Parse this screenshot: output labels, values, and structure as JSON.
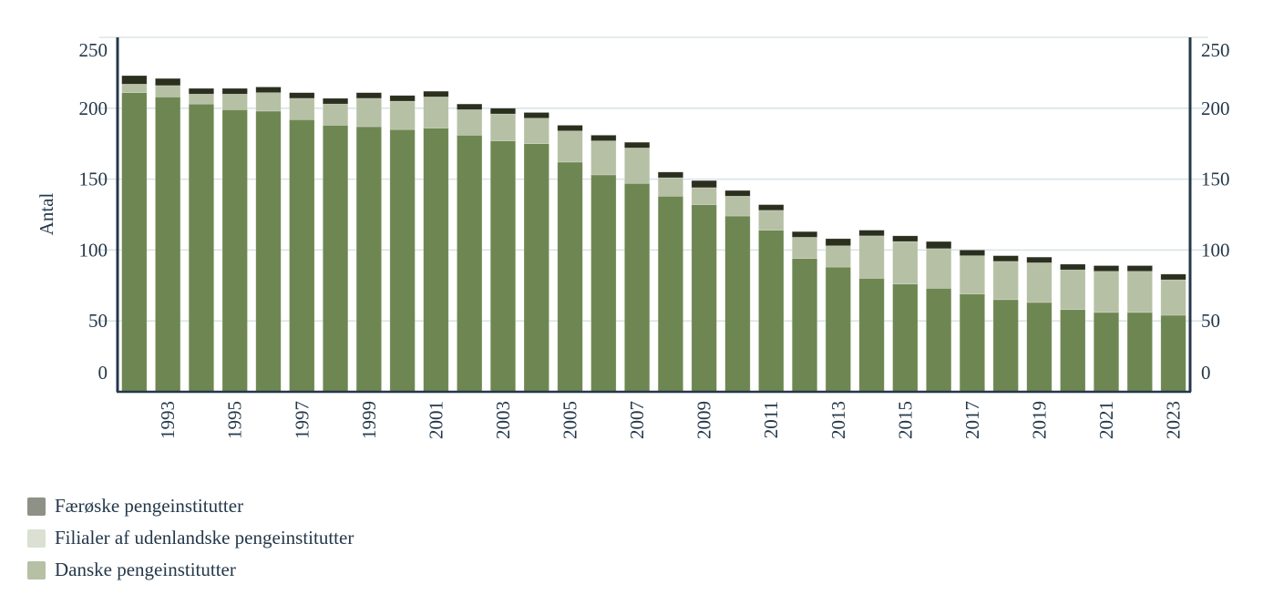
{
  "chart_data": {
    "type": "bar",
    "stacked": true,
    "title": "",
    "xlabel": "",
    "ylabel": "Antal",
    "ylim": [
      0,
      250
    ],
    "yticks": [
      0,
      50,
      100,
      150,
      200,
      250
    ],
    "grid": true,
    "legend_position": "bottom-left",
    "categories": [
      1992,
      1993,
      1994,
      1995,
      1996,
      1997,
      1998,
      1999,
      2000,
      2001,
      2002,
      2003,
      2004,
      2005,
      2006,
      2007,
      2008,
      2009,
      2010,
      2011,
      2012,
      2013,
      2014,
      2015,
      2016,
      2017,
      2018,
      2019,
      2020,
      2021,
      2022,
      2023
    ],
    "xtick_labels": [
      "1993",
      "1995",
      "1997",
      "1999",
      "2001",
      "2003",
      "2005",
      "2007",
      "2009",
      "2011",
      "2013",
      "2015",
      "2017",
      "2019",
      "2021",
      "2023"
    ],
    "series": [
      {
        "name": "Danske pengeinstitutter",
        "color": "#6e8752",
        "legend_color": "#b6c0a5",
        "values": [
          211,
          208,
          203,
          199,
          198,
          192,
          188,
          187,
          185,
          186,
          181,
          177,
          175,
          162,
          153,
          147,
          138,
          132,
          124,
          114,
          94,
          88,
          80,
          76,
          73,
          69,
          65,
          63,
          58,
          56,
          56,
          54
        ]
      },
      {
        "name": "Filialer af udenlandske pengeinstitutter",
        "color": "#b6c0a5",
        "legend_color": "#dae0d2",
        "values": [
          6,
          8,
          7,
          11,
          13,
          15,
          15,
          20,
          20,
          22,
          18,
          19,
          18,
          22,
          24,
          25,
          13,
          12,
          14,
          14,
          15,
          15,
          30,
          30,
          28,
          27,
          27,
          28,
          28,
          29,
          29,
          25
        ]
      },
      {
        "name": "Færøske pengeinstitutter",
        "color": "#2a2f1e",
        "legend_color": "#8e9186",
        "values": [
          6,
          5,
          4,
          4,
          4,
          4,
          4,
          4,
          4,
          4,
          4,
          4,
          4,
          4,
          4,
          4,
          4,
          5,
          4,
          4,
          4,
          5,
          4,
          4,
          5,
          4,
          4,
          4,
          4,
          4,
          4,
          4
        ]
      }
    ]
  },
  "legend": {
    "items": [
      {
        "label": "Færøske pengeinstitutter",
        "color": "#8e9186"
      },
      {
        "label": "Filialer af udenlandske pengeinstitutter",
        "color": "#dae0d2"
      },
      {
        "label": "Danske pengeinstitutter",
        "color": "#b6c0a5"
      }
    ]
  },
  "colors": {
    "axis": "#24384a",
    "grid": "#d3e0e2",
    "text": "#24384a"
  }
}
